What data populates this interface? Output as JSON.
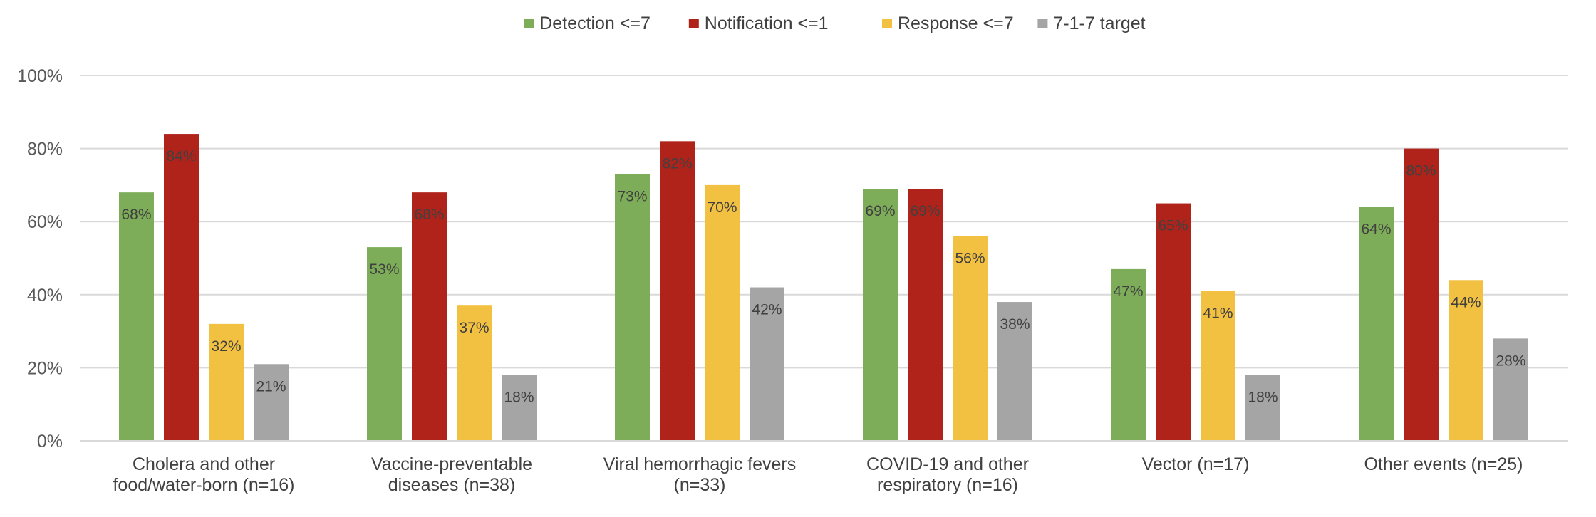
{
  "chart_data": {
    "type": "bar",
    "categories": [
      [
        "Cholera and other",
        "food/water-born (n=16)"
      ],
      [
        "Vaccine-preventable",
        "diseases (n=38)"
      ],
      [
        "Viral hemorrhagic fevers",
        "(n=33)"
      ],
      [
        "COVID-19 and other",
        "respiratory (n=16)"
      ],
      [
        "Vector (n=17)"
      ],
      [
        "Other events (n=25)"
      ]
    ],
    "series": [
      {
        "name": "Detection <=7",
        "color": "#7dad58",
        "values": [
          68,
          53,
          73,
          69,
          47,
          64
        ]
      },
      {
        "name": "Notification <=1",
        "color": "#b0231b",
        "values": [
          84,
          68,
          82,
          69,
          65,
          80
        ]
      },
      {
        "name": "Response <=7",
        "color": "#f3c142",
        "values": [
          32,
          37,
          70,
          56,
          41,
          44
        ]
      },
      {
        "name": "7-1-7 target",
        "color": "#a5a5a5",
        "values": [
          21,
          18,
          42,
          38,
          18,
          28
        ]
      }
    ],
    "y_ticks": [
      "0%",
      "20%",
      "40%",
      "60%",
      "80%",
      "100%"
    ],
    "ylim": [
      0,
      100
    ],
    "grid": true,
    "legend_position": "top-center",
    "data_label_suffix": "%"
  }
}
